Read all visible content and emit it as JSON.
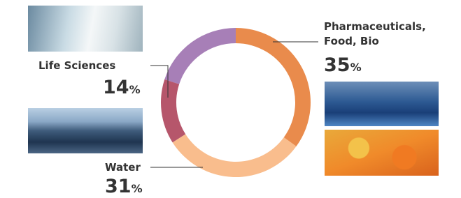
{
  "chart_data": {
    "type": "donut",
    "categories": [
      "Pharmaceuticals, Food, Bio",
      "Water",
      "Life Sciences",
      null
    ],
    "values": [
      35,
      31,
      14,
      20
    ],
    "unit": "%",
    "colors": [
      "#e98b4c",
      "#f9bd8d",
      "#b6566b",
      "#a77fb7"
    ]
  }
}
